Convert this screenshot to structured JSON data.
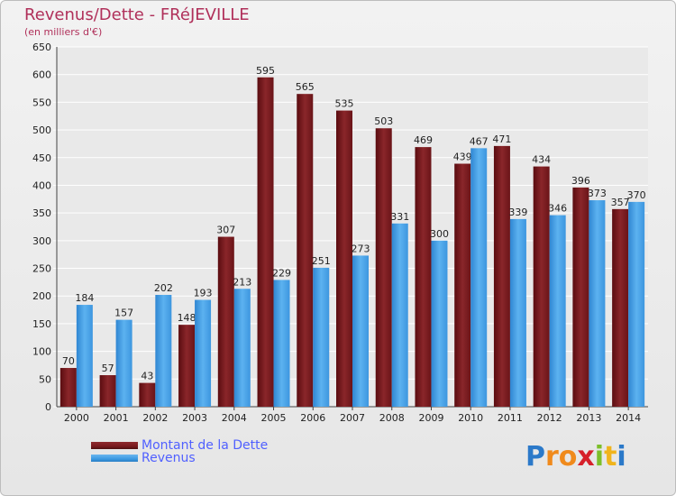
{
  "title": "Revenus/Dette - FRéJEVILLE",
  "subtitle": "(en milliers d'€)",
  "colors": {
    "debt": "#7a1a1e",
    "revenue": "#3d9be3",
    "grid": "#ffffff",
    "text": "#222222",
    "accent": "#b0305a"
  },
  "legend": [
    {
      "label": "Montant de la Dette",
      "series": "debt"
    },
    {
      "label": "Revenus",
      "series": "revenue"
    }
  ],
  "logo": {
    "text": "Proxiti",
    "letters": [
      "P",
      "r",
      "o",
      "x",
      "i",
      "t",
      "i"
    ],
    "letter_colors": [
      "#2b79c9",
      "#f08a1c",
      "#f08a1c",
      "#d6202a",
      "#7cbf2a",
      "#f0b41c",
      "#2b79c9"
    ]
  },
  "chart_data": {
    "type": "bar",
    "categories": [
      "2000",
      "2001",
      "2002",
      "2003",
      "2004",
      "2005",
      "2006",
      "2007",
      "2008",
      "2009",
      "2010",
      "2011",
      "2012",
      "2013",
      "2014"
    ],
    "series": [
      {
        "name": "Montant de la Dette",
        "key": "debt",
        "values": [
          70,
          57,
          43,
          148,
          307,
          595,
          565,
          535,
          503,
          469,
          439,
          471,
          434,
          396,
          357
        ]
      },
      {
        "name": "Revenus",
        "key": "revenue",
        "values": [
          184,
          157,
          202,
          193,
          213,
          229,
          251,
          273,
          331,
          300,
          467,
          339,
          346,
          373,
          370
        ]
      }
    ],
    "title": "Revenus/Dette - FRéJEVILLE",
    "ylabel": "(en milliers d'€)",
    "ylim": [
      0,
      650
    ],
    "yticks": [
      0,
      50,
      100,
      150,
      200,
      250,
      300,
      350,
      400,
      450,
      500,
      550,
      600,
      650
    ],
    "grid": true,
    "legend_position": "bottom-left"
  }
}
